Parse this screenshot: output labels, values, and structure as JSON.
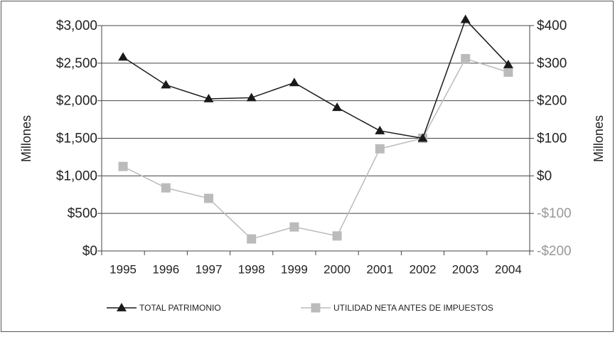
{
  "chart_data": {
    "type": "line",
    "y_axis_label": "Millones",
    "y2_axis_label": "Millones",
    "categories": [
      "1995",
      "1996",
      "1997",
      "1998",
      "1999",
      "2000",
      "2001",
      "2002",
      "2003",
      "2004"
    ],
    "series": [
      {
        "name": "TOTAL PATRIMONIO",
        "color": "#1a1a1a",
        "marker": "triangle",
        "values": [
          2580,
          2210,
          2025,
          2040,
          2240,
          1910,
          1600,
          1500,
          3080,
          2480
        ]
      },
      {
        "name": "UTILIDAD NETA ANTES DE IMPUESTOS",
        "color": "#bbbbbb",
        "marker": "square",
        "axis": "y2",
        "values": [
          25,
          -32,
          -60,
          -168,
          -136,
          -160,
          72,
          100,
          312,
          276
        ]
      }
    ],
    "ylim": [
      0,
      3000
    ],
    "yticks": [
      {
        "value": 0,
        "label": "$0"
      },
      {
        "value": 500,
        "label": "$500"
      },
      {
        "value": 1000,
        "label": "$1,000"
      },
      {
        "value": 1500,
        "label": "$1,500"
      },
      {
        "value": 2000,
        "label": "$2,000"
      },
      {
        "value": 2500,
        "label": "$2,500"
      },
      {
        "value": 3000,
        "label": "$3,000"
      }
    ],
    "y2lim": [
      -200,
      400
    ],
    "y2ticks": [
      {
        "value": -200,
        "label": "-$200"
      },
      {
        "value": -100,
        "label": "-$100"
      },
      {
        "value": 0,
        "label": "$0"
      },
      {
        "value": 100,
        "label": "$100"
      },
      {
        "value": 200,
        "label": "$200"
      },
      {
        "value": 300,
        "label": "$300"
      },
      {
        "value": 400,
        "label": "$400"
      }
    ],
    "grid": true,
    "legend": "bottom"
  }
}
